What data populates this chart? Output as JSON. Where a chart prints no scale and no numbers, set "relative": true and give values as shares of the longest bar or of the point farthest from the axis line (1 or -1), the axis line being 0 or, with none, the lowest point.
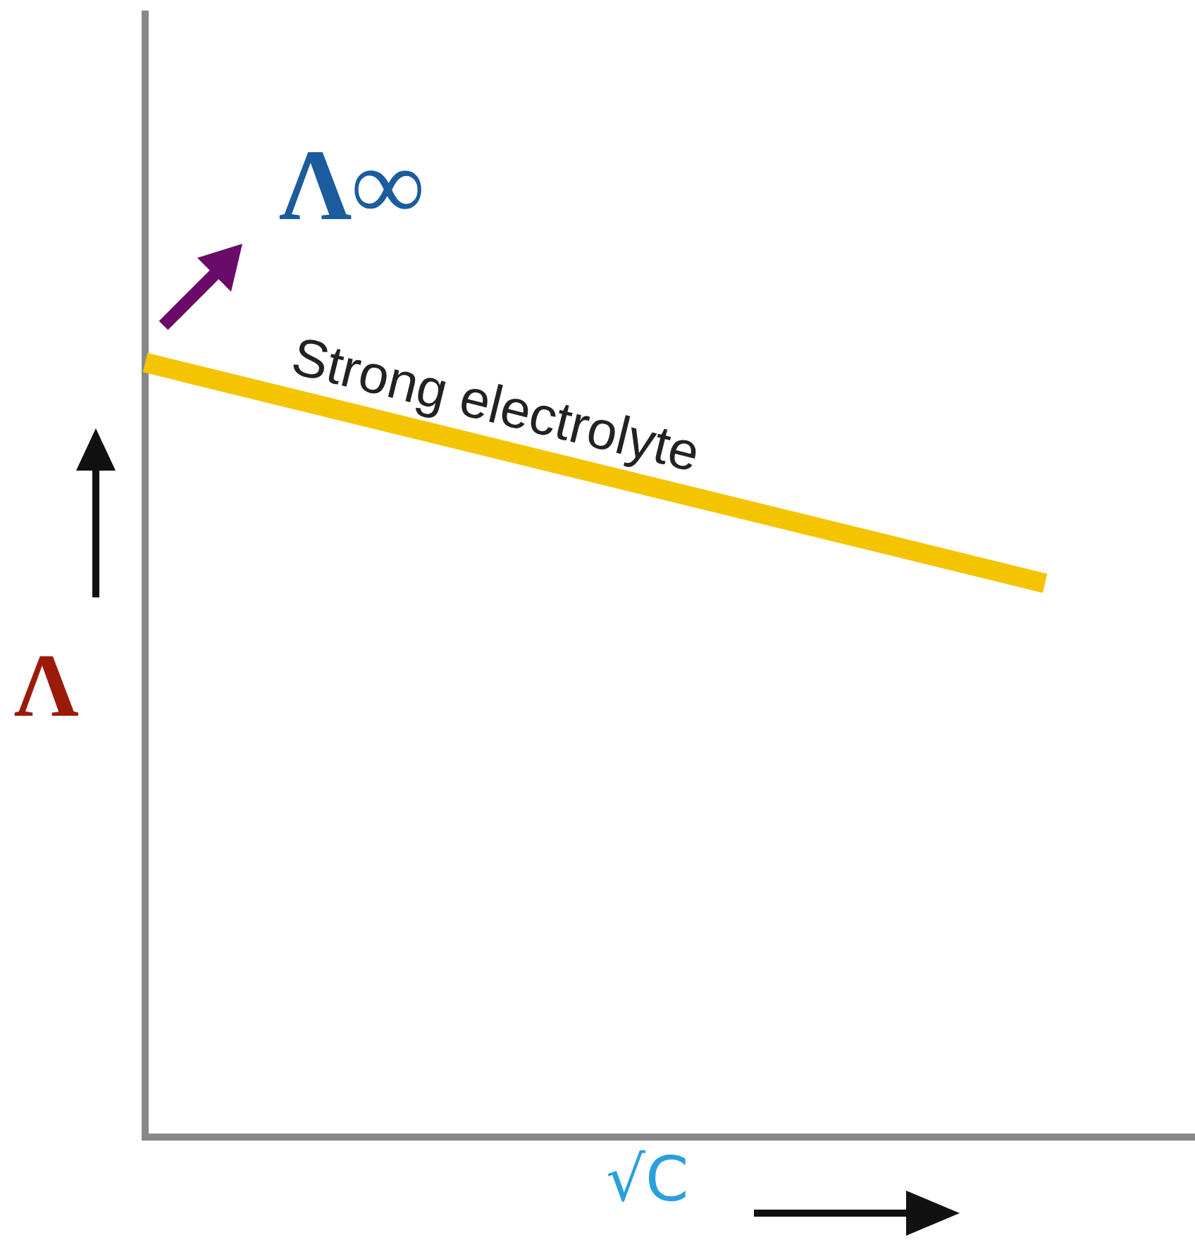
{
  "chart_data": {
    "type": "line",
    "relative": true,
    "xlabel": "√C",
    "ylabel": "Λ",
    "categories": [
      null,
      null,
      null,
      null,
      null,
      null,
      null,
      null
    ],
    "series": [
      {
        "color": "#f5c400",
        "values": [
          1,
          null,
          null,
          null,
          null,
          null,
          0.715,
          null
        ]
      }
    ],
    "annotations": [
      "Λ∞",
      "Strong electrolyte"
    ],
    "grid": false,
    "legend": false,
    "marker": "none"
  }
}
